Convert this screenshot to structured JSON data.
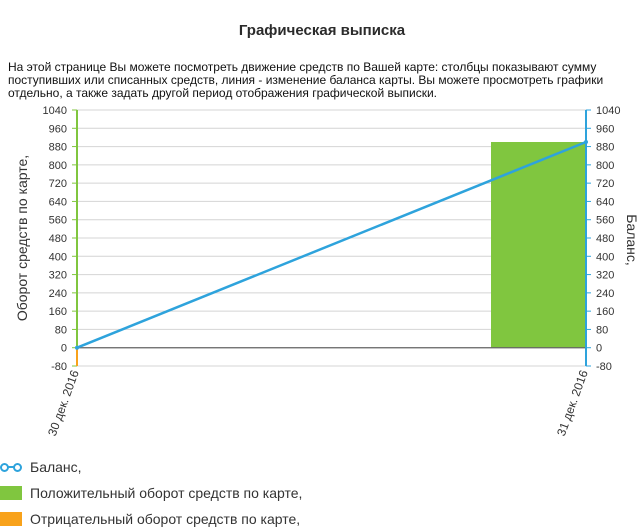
{
  "page": {
    "title": "Графическая выписка",
    "description": "На этой странице Вы можете посмотреть движение средств по Вашей карте: столбцы показывают сумму поступивших или списанных средств, линия - изменение баланса карты. Вы можете просмотреть графики отдельно, а также задать другой период отображения графической выписки."
  },
  "colors": {
    "positive": "#80c63f",
    "negative": "#f8a21b",
    "balance": "#2ea3dc",
    "left_axis": "#80c63f",
    "grid": "#d4d4d4"
  },
  "legend": {
    "balance": "Баланс,",
    "positive": "Положительный оборот средств по карте,",
    "negative": "Отрицательный оборот средств по карте,"
  },
  "chart_data": {
    "type": "bar+line",
    "categories": [
      "30 дек. 2016",
      "31 дек. 2016"
    ],
    "ylabel_left": "Оборот средств по карте,",
    "ylabel_right": "Баланс,",
    "ylim": [
      -80,
      1040
    ],
    "yticks": [
      -80,
      0,
      80,
      160,
      240,
      320,
      400,
      480,
      560,
      640,
      720,
      800,
      880,
      960,
      1040
    ],
    "grid": true,
    "series": [
      {
        "name": "Положительный оборот средств по карте,",
        "kind": "bar",
        "values": [
          0,
          900
        ]
      },
      {
        "name": "Отрицательный оборот средств по карте,",
        "kind": "bar",
        "values": [
          0,
          0
        ]
      },
      {
        "name": "Баланс,",
        "kind": "line",
        "values": [
          0,
          900
        ]
      }
    ]
  }
}
